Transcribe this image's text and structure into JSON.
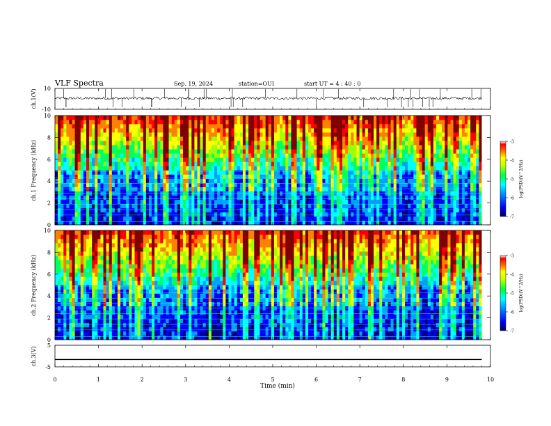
{
  "header": {
    "title": "VLF Spectra",
    "date": "Sep. 19, 2024",
    "station": "station=OUI",
    "start_ut": "start  UT =   4 : 40 : 0"
  },
  "chart_data": [
    {
      "type": "line",
      "panel": "ch1-waveform",
      "ylabel": "ch.1(V)",
      "ylim": [
        -10,
        10
      ],
      "tick_labels": [
        "10",
        "-10"
      ],
      "xlim": [
        0,
        10
      ],
      "series_color": "#000000"
    },
    {
      "type": "heatmap",
      "panel": "ch1-spectrogram",
      "ylabel": "ch.1 Frequency (kHz)",
      "ylim": [
        0,
        10
      ],
      "yticks": [
        "0",
        "2",
        "4",
        "6",
        "8",
        "10"
      ],
      "xlim": [
        0,
        10
      ],
      "colorbar": {
        "label": "log(PSD)(V^2/Hz)",
        "range": [
          -7,
          -3
        ],
        "ticks": [
          "-3",
          "-4",
          "-5",
          "-6",
          "-7"
        ]
      }
    },
    {
      "type": "heatmap",
      "panel": "ch2-spectrogram",
      "ylabel": "ch.2 Frequency (kHz)",
      "ylim": [
        0,
        10
      ],
      "yticks": [
        "0",
        "2",
        "4",
        "6",
        "8",
        "10"
      ],
      "xlim": [
        0,
        10
      ],
      "colorbar": {
        "label": "log(PSD)(V^2/Hz)",
        "range": [
          -7,
          -3
        ],
        "ticks": [
          "-3",
          "-4",
          "-5",
          "-6",
          "-7"
        ]
      }
    },
    {
      "type": "line",
      "panel": "ch3-waveform",
      "ylabel": "ch.3(V)",
      "ylim": [
        -5,
        5
      ],
      "tick_labels": [
        "5",
        "-5"
      ],
      "xlim": [
        0,
        10
      ],
      "series": [
        {
          "x": [
            0,
            9.8
          ],
          "y": [
            -1.6,
            -1.6
          ]
        }
      ]
    }
  ],
  "x_axis": {
    "label": "Time (min)",
    "ticks": [
      "0",
      "1",
      "2",
      "3",
      "4",
      "5",
      "6",
      "7",
      "8",
      "9",
      "10"
    ],
    "data_end": 9.8
  },
  "colors": {
    "colormap": [
      "#000080",
      "#0000ff",
      "#00a0ff",
      "#00ffff",
      "#00ff60",
      "#a0ff00",
      "#ffff00",
      "#ff8000",
      "#ff0000",
      "#800000"
    ]
  }
}
